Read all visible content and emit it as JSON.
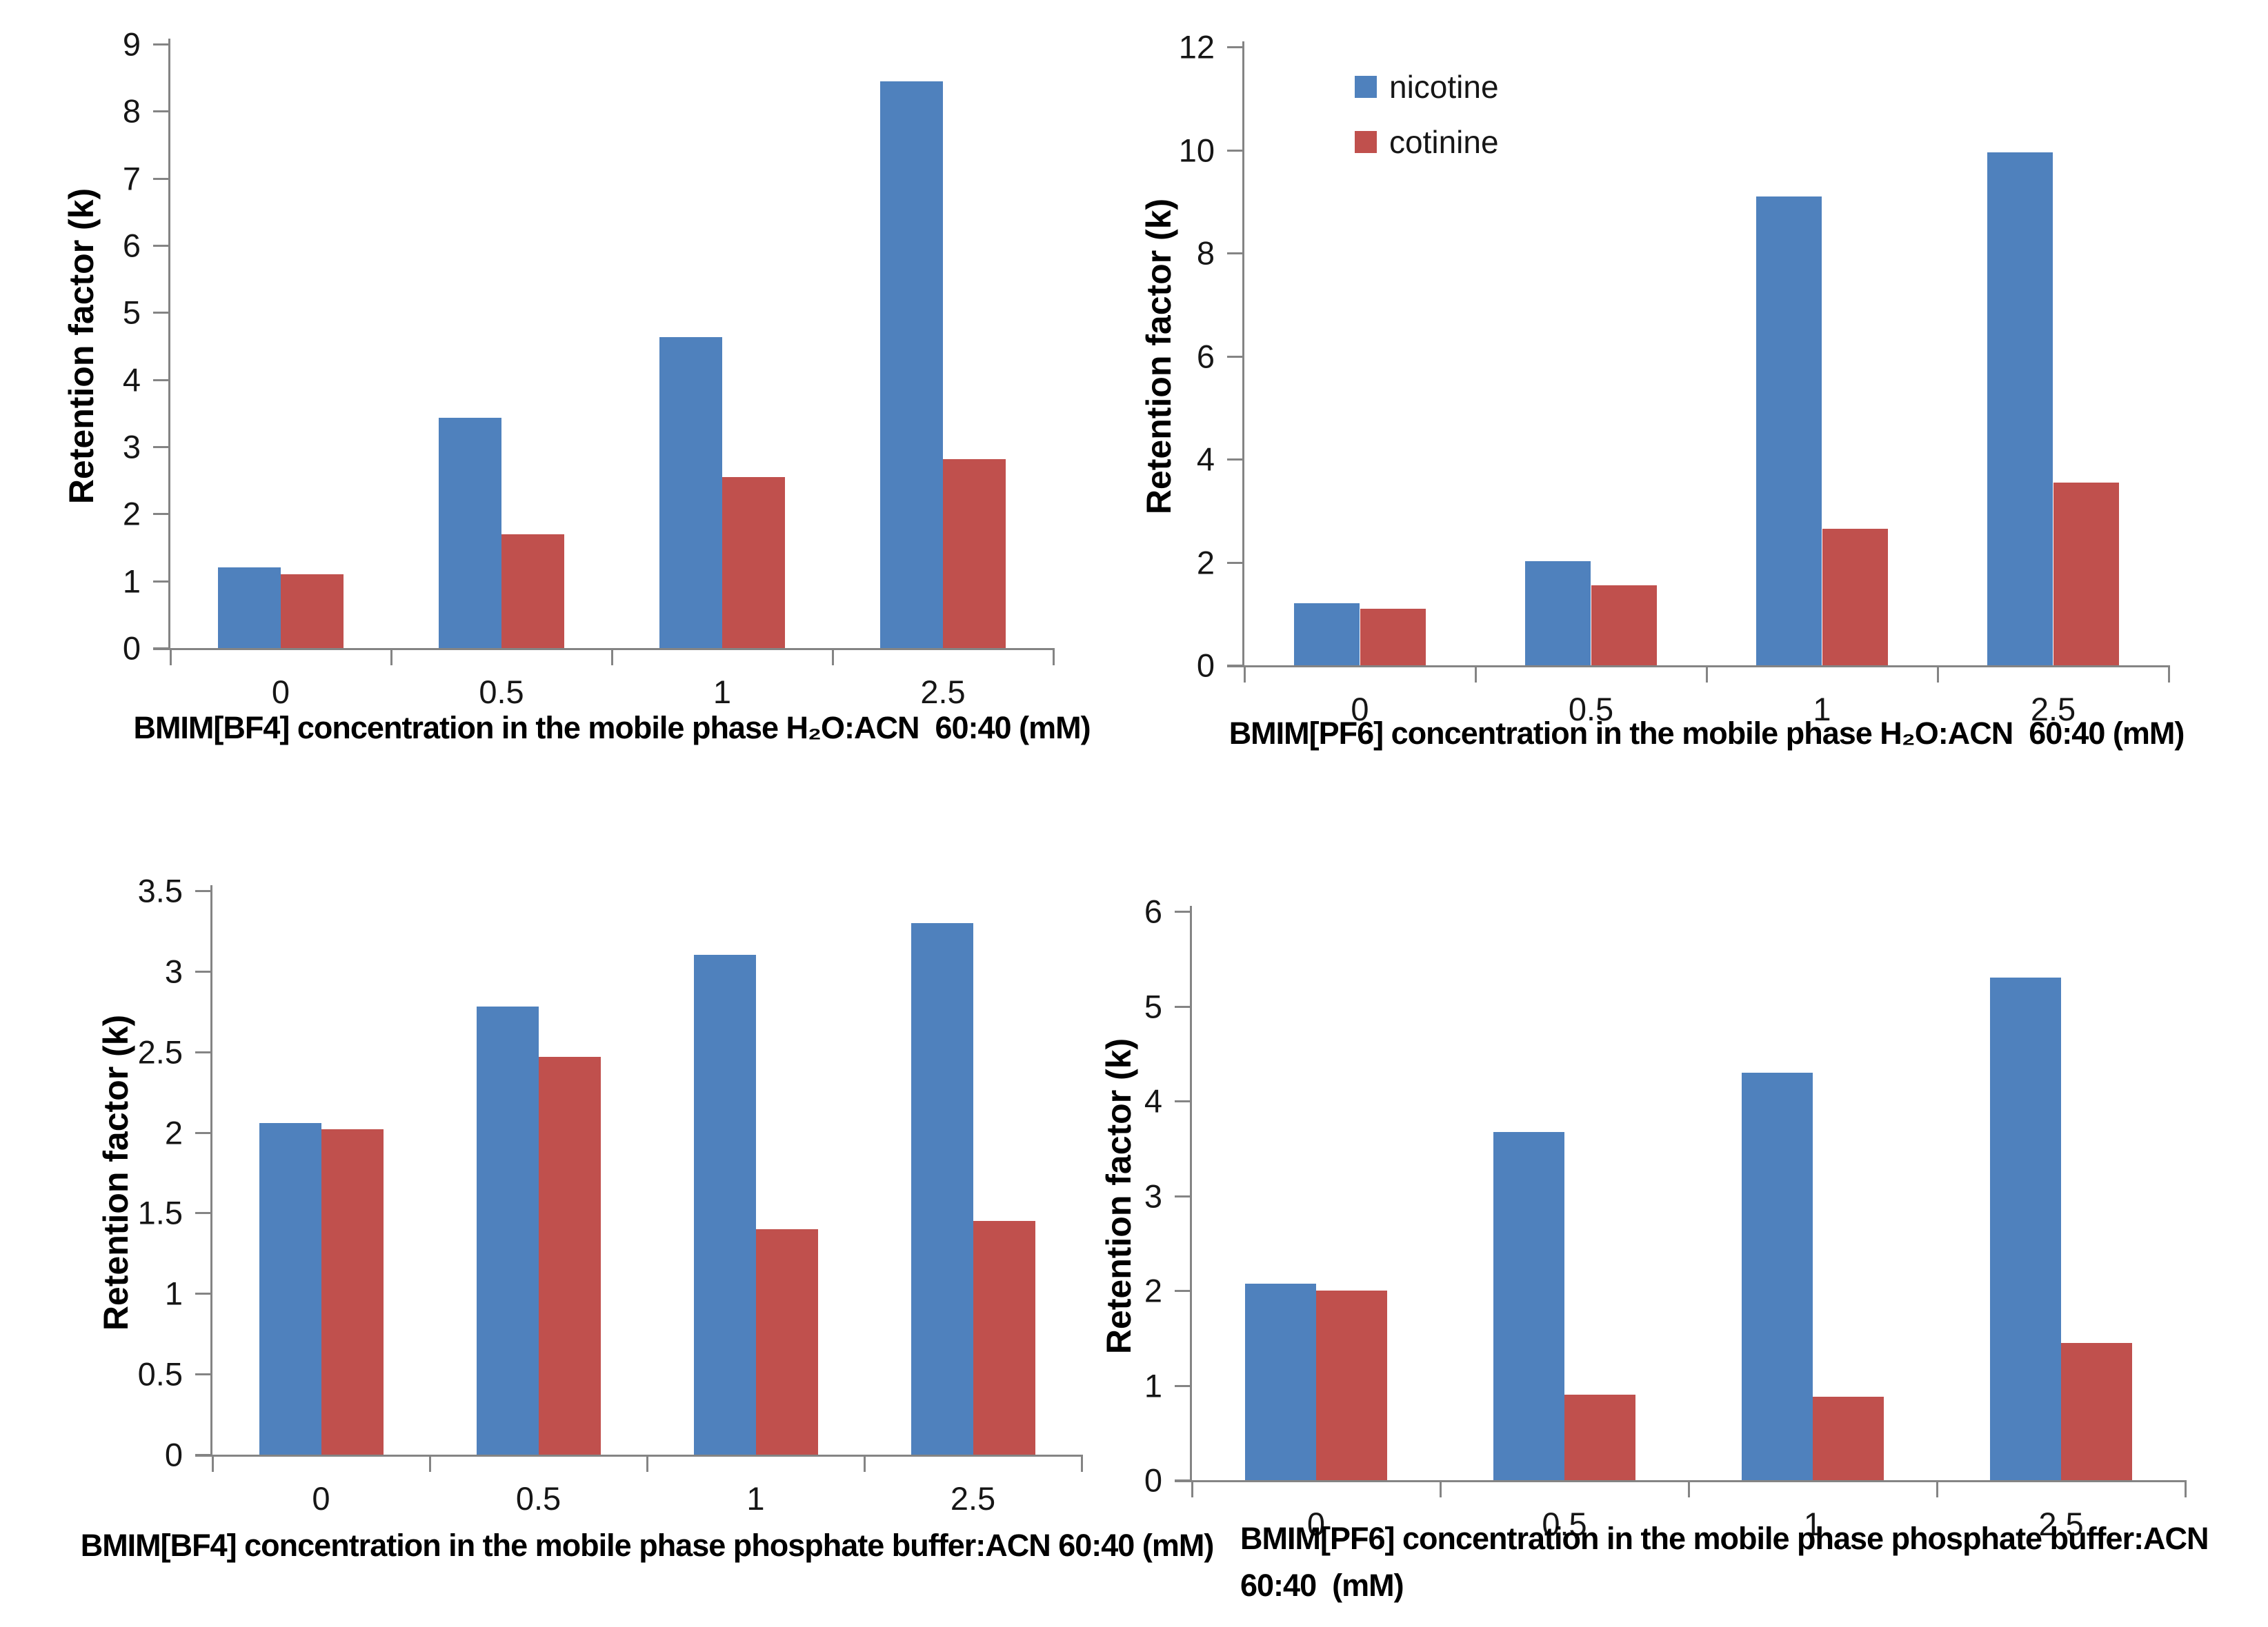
{
  "figure": {
    "background": "#ffffff"
  },
  "colors": {
    "nicotine": "#4F81BD",
    "cotinine": "#C0504D",
    "axis": "#848484",
    "text": "#161616"
  },
  "legend": {
    "position": "inside top-left of top-right chart",
    "items": [
      {
        "label": "nicotine",
        "color": "#4F81BD"
      },
      {
        "label": "cotinine",
        "color": "#C0504D"
      }
    ]
  },
  "chart_data": [
    {
      "type": "bar",
      "panel": "top-left",
      "ylabel": "Retention factor (k)",
      "xlabel_lines": [
        "BMIM[BF4] concentration in the mobile phase H₂O:ACN  60:40 (mM)"
      ],
      "categories": [
        "0",
        "0.5",
        "1",
        "2.5"
      ],
      "series": [
        {
          "name": "nicotine",
          "color": "#4F81BD",
          "values": [
            1.2,
            3.43,
            4.63,
            8.45
          ]
        },
        {
          "name": "cotinine",
          "color": "#C0504D",
          "values": [
            1.1,
            1.7,
            2.55,
            2.82
          ]
        }
      ],
      "ylim": [
        0,
        9
      ],
      "yticks": [
        "0",
        "1",
        "2",
        "3",
        "4",
        "5",
        "6",
        "7",
        "8",
        "9"
      ],
      "grid": false,
      "has_legend": false
    },
    {
      "type": "bar",
      "panel": "top-right",
      "ylabel": "Retention factor (k)",
      "xlabel_lines": [
        "BMIM[PF6] concentration in the mobile phase H₂O:ACN  60:40 (mM)"
      ],
      "categories": [
        "0",
        "0.5",
        "1",
        "2.5"
      ],
      "series": [
        {
          "name": "nicotine",
          "color": "#4F81BD",
          "values": [
            1.2,
            2.02,
            9.1,
            9.95
          ]
        },
        {
          "name": "cotinine",
          "color": "#C0504D",
          "values": [
            1.1,
            1.55,
            2.65,
            3.55
          ]
        }
      ],
      "ylim": [
        0,
        12
      ],
      "yticks": [
        "0",
        "2",
        "4",
        "6",
        "8",
        "10",
        "12"
      ],
      "grid": false,
      "has_legend": true
    },
    {
      "type": "bar",
      "panel": "bottom-left",
      "ylabel": "Retention factor (k)",
      "xlabel_lines": [
        "BMIM[BF4] concentration in the mobile phase phosphate buffer:ACN 60:40 (mM)"
      ],
      "categories": [
        "0",
        "0.5",
        "1",
        "2.5"
      ],
      "series": [
        {
          "name": "nicotine",
          "color": "#4F81BD",
          "values": [
            2.06,
            2.78,
            3.1,
            3.3
          ]
        },
        {
          "name": "cotinine",
          "color": "#C0504D",
          "values": [
            2.02,
            2.47,
            1.4,
            1.45
          ]
        }
      ],
      "ylim": [
        0,
        3.5
      ],
      "yticks": [
        "0",
        "0.5",
        "1",
        "1.5",
        "2",
        "2.5",
        "3",
        "3.5"
      ],
      "grid": false,
      "has_legend": false
    },
    {
      "type": "bar",
      "panel": "bottom-right",
      "ylabel": "Retention factor (k)",
      "xlabel_lines": [
        "BMIM[PF6] concentration in the mobile phase phosphate buffer:ACN",
        "60:40  (mM)"
      ],
      "categories": [
        "0",
        "0.5",
        "1",
        "2.5"
      ],
      "series": [
        {
          "name": "nicotine",
          "color": "#4F81BD",
          "values": [
            2.07,
            3.67,
            4.3,
            5.3
          ]
        },
        {
          "name": "cotinine",
          "color": "#C0504D",
          "values": [
            2.0,
            0.9,
            0.88,
            1.45
          ]
        }
      ],
      "ylim": [
        0,
        6
      ],
      "yticks": [
        "0",
        "1",
        "2",
        "3",
        "4",
        "5",
        "6"
      ],
      "grid": false,
      "has_legend": false
    }
  ]
}
